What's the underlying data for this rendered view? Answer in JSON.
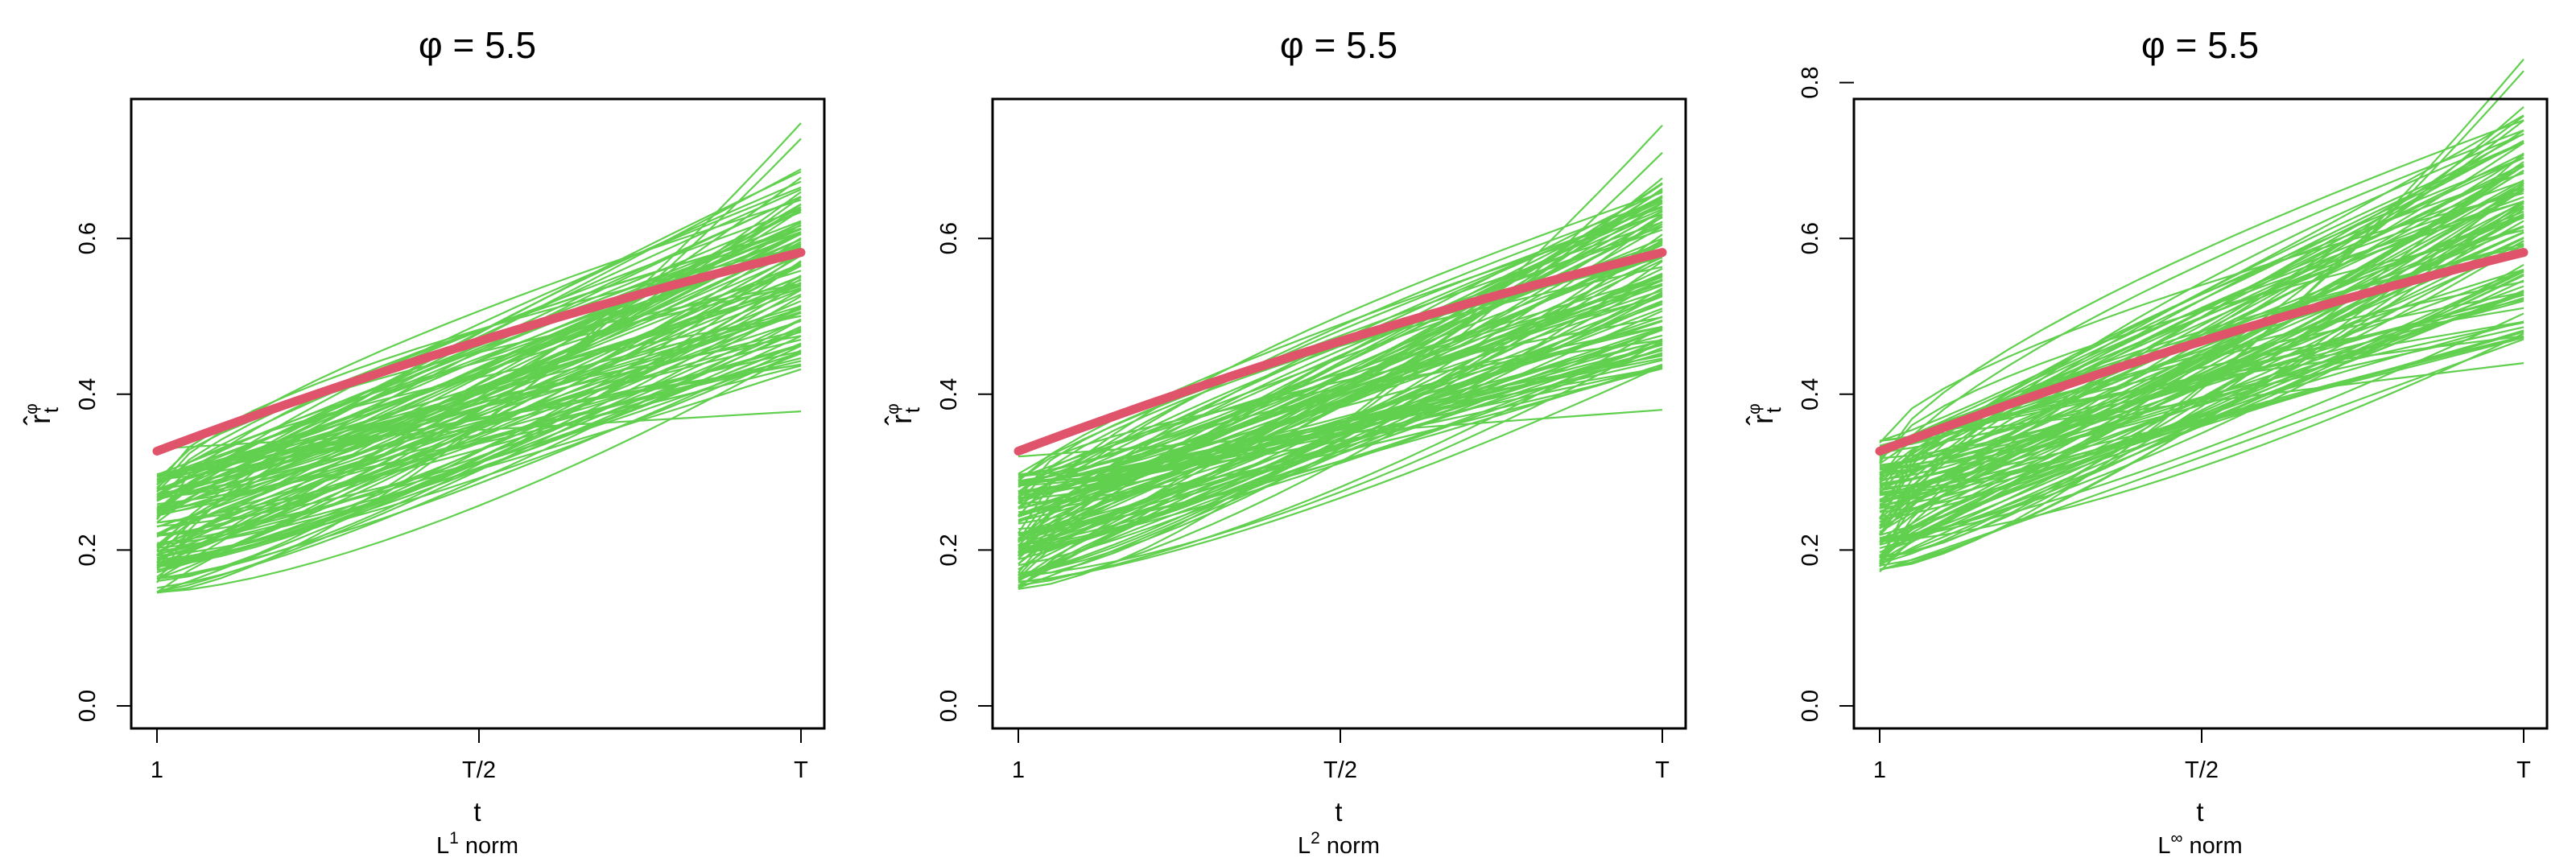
{
  "colors": {
    "simulations": "#61D04F",
    "target": "#DF536B",
    "axis": "#000000"
  },
  "chart_data": [
    {
      "type": "line",
      "title": "φ = 5.5",
      "xlabel": "t",
      "ylabel": {
        "base": "r̂",
        "sup": "φ",
        "sub": "t"
      },
      "subtitle": {
        "prefix": "L",
        "sup": "1",
        "suffix": " norm"
      },
      "x_ticks": [
        "1",
        "T/2",
        "T"
      ],
      "y_ticks": [
        "0.0",
        "0.2",
        "0.4",
        "0.6"
      ],
      "ylim": [
        0.0,
        0.76
      ],
      "grid": false,
      "series": [
        {
          "role": "target",
          "color": "#DF536B",
          "x": [
            0,
            0.5,
            1
          ],
          "y": [
            0.327,
            0.468,
            0.582
          ]
        },
        {
          "role": "simulations",
          "color": "#61D04F",
          "count": 110,
          "start_range": [
            0.145,
            0.298
          ],
          "end_range": [
            0.43,
            0.69
          ],
          "outliers": [
            {
              "x": [
                0,
                1
              ],
              "y": [
                0.33,
                0.378
              ]
            },
            {
              "x": [
                0,
                1
              ],
              "y": [
                0.145,
                0.748
              ]
            },
            {
              "x": [
                0,
                1
              ],
              "y": [
                0.16,
                0.728
              ]
            }
          ]
        }
      ]
    },
    {
      "type": "line",
      "title": "φ = 5.5",
      "xlabel": "t",
      "ylabel": {
        "base": "r̂",
        "sup": "φ",
        "sub": "t"
      },
      "subtitle": {
        "prefix": "L",
        "sup": "2",
        "suffix": " norm"
      },
      "x_ticks": [
        "1",
        "T/2",
        "T"
      ],
      "y_ticks": [
        "0.0",
        "0.2",
        "0.4",
        "0.6"
      ],
      "ylim": [
        0.0,
        0.76
      ],
      "grid": false,
      "series": [
        {
          "role": "target",
          "color": "#DF536B",
          "x": [
            0,
            0.5,
            1
          ],
          "y": [
            0.327,
            0.468,
            0.582
          ]
        },
        {
          "role": "simulations",
          "color": "#61D04F",
          "count": 110,
          "start_range": [
            0.15,
            0.298
          ],
          "end_range": [
            0.43,
            0.68
          ],
          "outliers": [
            {
              "x": [
                0,
                1
              ],
              "y": [
                0.32,
                0.38
              ]
            },
            {
              "x": [
                0,
                1
              ],
              "y": [
                0.15,
                0.745
              ]
            },
            {
              "x": [
                0,
                1
              ],
              "y": [
                0.165,
                0.71
              ]
            }
          ]
        }
      ]
    },
    {
      "type": "line",
      "title": "φ = 5.5",
      "xlabel": "t",
      "ylabel": {
        "base": "r̂",
        "sup": "φ",
        "sub": "t"
      },
      "subtitle": {
        "prefix": "L",
        "sup": "∞",
        "suffix": " norm"
      },
      "x_ticks": [
        "1",
        "T/2",
        "T"
      ],
      "y_ticks": [
        "0.0",
        "0.2",
        "0.4",
        "0.6",
        "0.8"
      ],
      "ylim": [
        0.0,
        0.84
      ],
      "grid": false,
      "series": [
        {
          "role": "target",
          "color": "#DF536B",
          "x": [
            0,
            0.5,
            1
          ],
          "y": [
            0.327,
            0.468,
            0.582
          ]
        },
        {
          "role": "simulations",
          "color": "#61D04F",
          "count": 110,
          "start_range": [
            0.172,
            0.345
          ],
          "end_range": [
            0.47,
            0.77
          ],
          "outliers": [
            {
              "x": [
                0,
                1
              ],
              "y": [
                0.34,
                0.44
              ]
            },
            {
              "x": [
                0,
                1
              ],
              "y": [
                0.175,
                0.83
              ]
            },
            {
              "x": [
                0,
                1
              ],
              "y": [
                0.19,
                0.815
              ]
            }
          ]
        }
      ]
    }
  ]
}
